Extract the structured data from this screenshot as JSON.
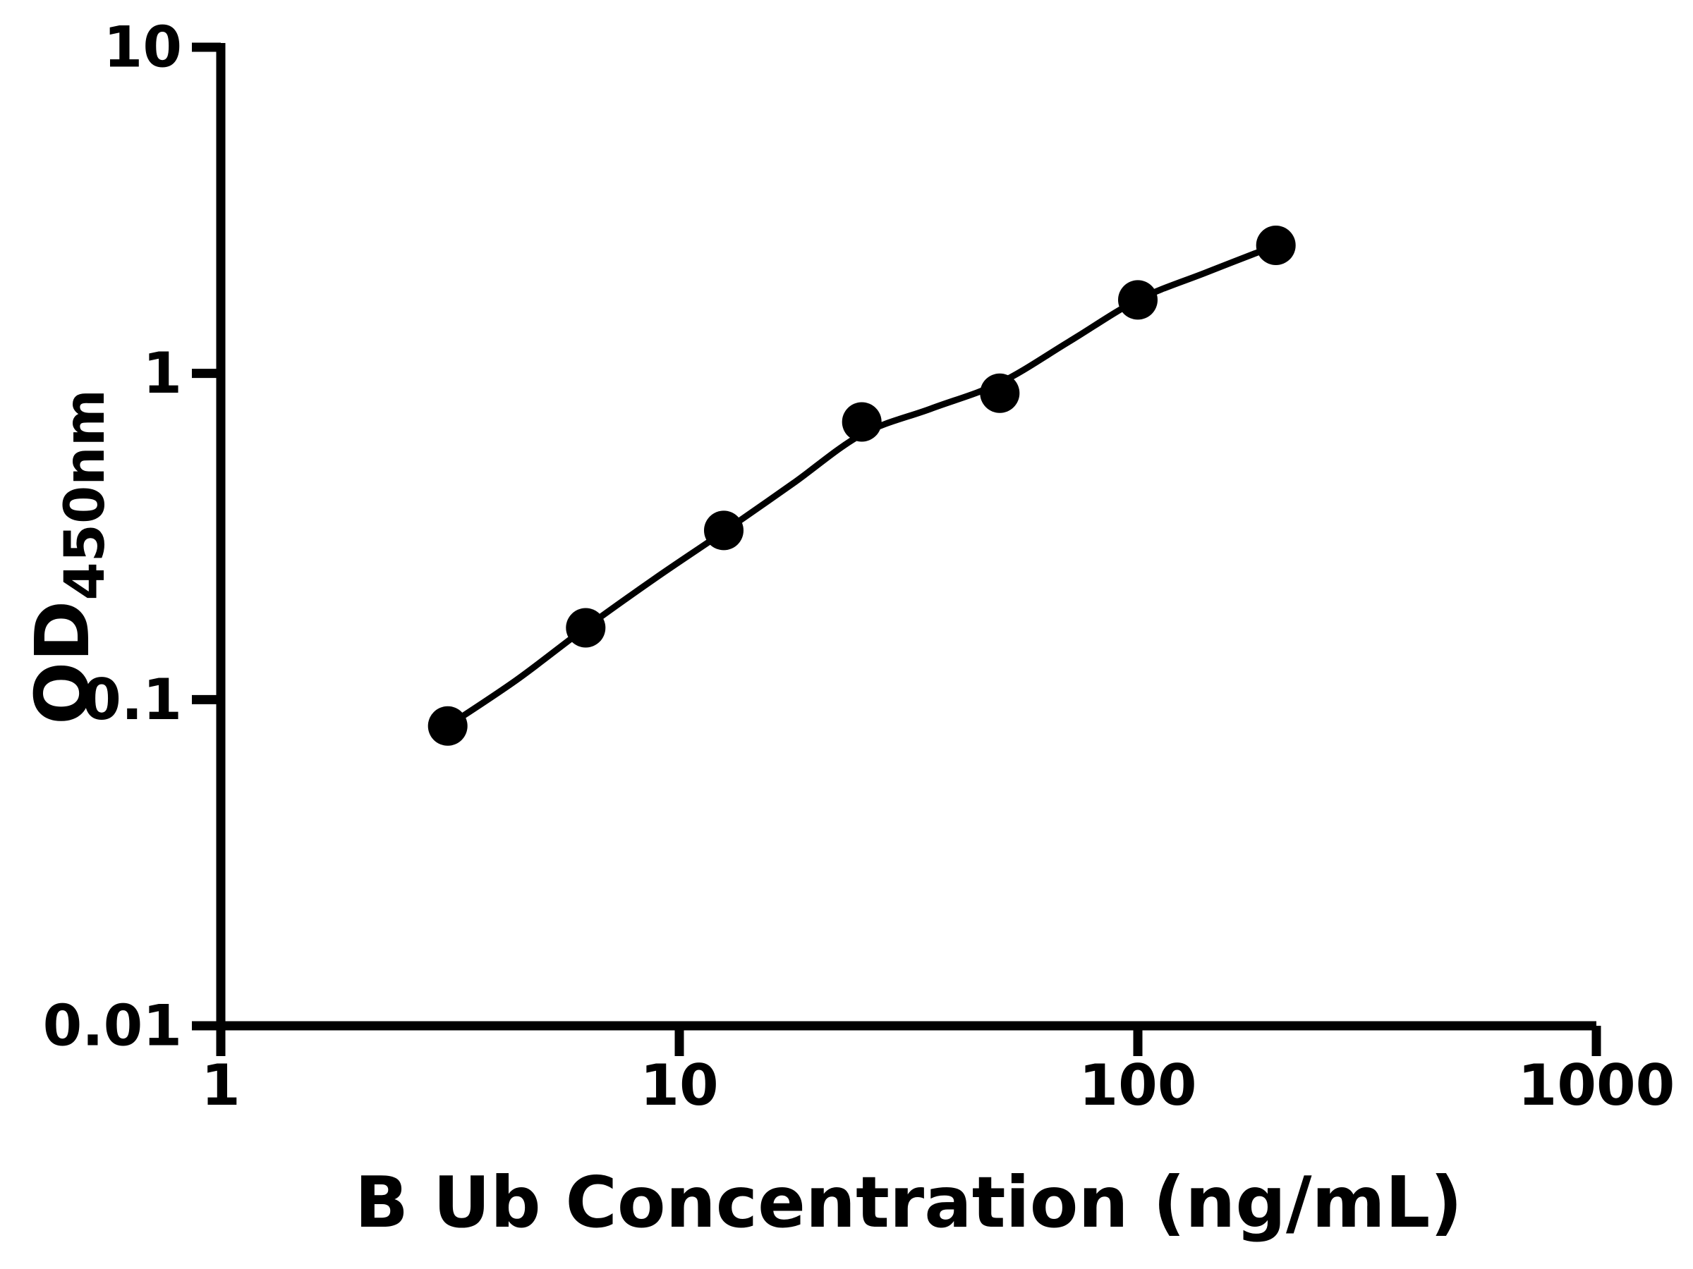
{
  "chart_data": {
    "type": "scatter",
    "title": "",
    "xlabel": "B Ub Concentration (ng/mL)",
    "ylabel": "OD450nm",
    "ylabel_main": "OD",
    "ylabel_sub": "450nm",
    "x_scale": "log",
    "y_scale": "log",
    "xlim": [
      1,
      1000
    ],
    "ylim": [
      0.01,
      10
    ],
    "x_ticks": [
      1,
      10,
      100,
      1000
    ],
    "y_ticks": [
      10,
      1,
      0.1,
      0.01
    ],
    "grid": false,
    "legend": "none",
    "background_color": "#ffffff",
    "axis_color": "#000000",
    "marker_color": "#000000",
    "line_color": "#000000",
    "series": [
      {
        "name": "standard-points",
        "style": "filled-circle-markers",
        "x": [
          3.125,
          6.25,
          12.5,
          25,
          50,
          100,
          200
        ],
        "y": [
          0.083,
          0.166,
          0.33,
          0.71,
          0.87,
          1.68,
          2.47
        ]
      },
      {
        "name": "fitted-curve",
        "style": "smooth-line",
        "x": [
          3.125,
          4.42,
          6.25,
          8.84,
          12.5,
          17.7,
          25,
          35.4,
          50,
          70.7,
          100,
          141,
          200
        ],
        "y": [
          0.083,
          0.115,
          0.166,
          0.235,
          0.327,
          0.46,
          0.65,
          0.78,
          0.935,
          1.25,
          1.68,
          2.04,
          2.47
        ]
      }
    ]
  }
}
